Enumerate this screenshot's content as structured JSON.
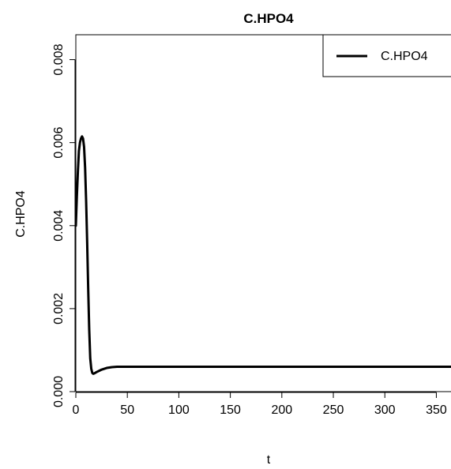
{
  "chart_data": {
    "type": "line",
    "title": "C.HPO4",
    "xlabel": "t",
    "ylabel": "C.HPO4",
    "xlim": [
      0,
      365
    ],
    "ylim": [
      0,
      0.0086
    ],
    "x_ticks": [
      0,
      50,
      100,
      150,
      200,
      250,
      300,
      350
    ],
    "y_ticks": [
      0.0,
      0.002,
      0.004,
      0.006,
      0.008
    ],
    "x_tick_labels": [
      "0",
      "50",
      "100",
      "150",
      "200",
      "250",
      "300",
      "350"
    ],
    "y_tick_labels": [
      "0.000",
      "0.002",
      "0.004",
      "0.006",
      "0.008"
    ],
    "grid": false,
    "legend_position": "top-right",
    "legend": [
      "C.HPO4"
    ],
    "series": [
      {
        "name": "C.HPO4",
        "color": "#000000",
        "points": [
          [
            0,
            0.004
          ],
          [
            1,
            0.0047
          ],
          [
            2,
            0.0053
          ],
          [
            3,
            0.0058
          ],
          [
            4,
            0.006
          ],
          [
            5,
            0.0061
          ],
          [
            6,
            0.00615
          ],
          [
            7,
            0.0061
          ],
          [
            8,
            0.0059
          ],
          [
            9,
            0.0054
          ],
          [
            10,
            0.0046
          ],
          [
            11,
            0.0036
          ],
          [
            12,
            0.0025
          ],
          [
            13,
            0.0015
          ],
          [
            14,
            0.0008
          ],
          [
            15,
            0.00055
          ],
          [
            16,
            0.00045
          ],
          [
            17,
            0.00043
          ],
          [
            18,
            0.00044
          ],
          [
            20,
            0.00047
          ],
          [
            25,
            0.00053
          ],
          [
            30,
            0.00057
          ],
          [
            35,
            0.00059
          ],
          [
            40,
            0.0006
          ],
          [
            50,
            0.0006
          ],
          [
            100,
            0.0006
          ],
          [
            200,
            0.0006
          ],
          [
            300,
            0.0006
          ],
          [
            365,
            0.0006
          ]
        ]
      }
    ]
  }
}
